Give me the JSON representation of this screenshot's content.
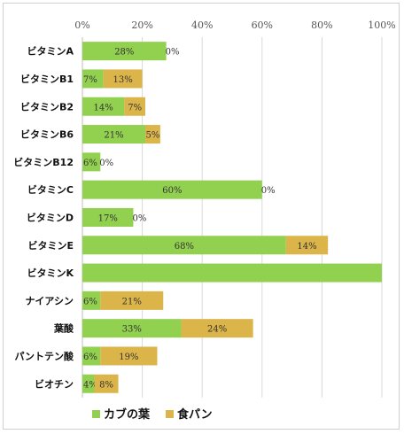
{
  "chart_data": {
    "type": "bar",
    "orientation": "horizontal",
    "stacked": true,
    "title": "",
    "xlabel": "",
    "ylabel": "",
    "xlim": [
      0,
      100
    ],
    "x_ticks": [
      "0%",
      "20%",
      "40%",
      "60%",
      "80%",
      "100%"
    ],
    "x_tick_position": "top",
    "grid": true,
    "legend_position": "bottom",
    "categories": [
      "ビタミンA",
      "ビタミンB1",
      "ビタミンB2",
      "ビタミンB6",
      "ビタミンB12",
      "ビタミンC",
      "ビタミンD",
      "ビタミンE",
      "ビタミンK",
      "ナイアシン",
      "葉酸",
      "パントテン酸",
      "ビオチン"
    ],
    "series": [
      {
        "name": "カブの葉",
        "color": "#92d050",
        "values": [
          28,
          7,
          14,
          21,
          6,
          60,
          17,
          68,
          100,
          6,
          33,
          6,
          4
        ],
        "labels": [
          "28%",
          "7%",
          "14%",
          "21%",
          "6%",
          "60%",
          "17%",
          "68%",
          "",
          "6%",
          "33%",
          "6%",
          "4%"
        ]
      },
      {
        "name": "食パン",
        "color": "#dbb54a",
        "values": [
          0,
          13,
          7,
          5,
          0,
          0,
          0,
          14,
          0,
          21,
          24,
          19,
          8
        ],
        "labels": [
          "0%",
          "13%",
          "7%",
          "5%",
          "0%",
          "0%",
          "0%",
          "14%",
          "",
          "21%",
          "24%",
          "19%",
          "8%"
        ]
      }
    ]
  }
}
